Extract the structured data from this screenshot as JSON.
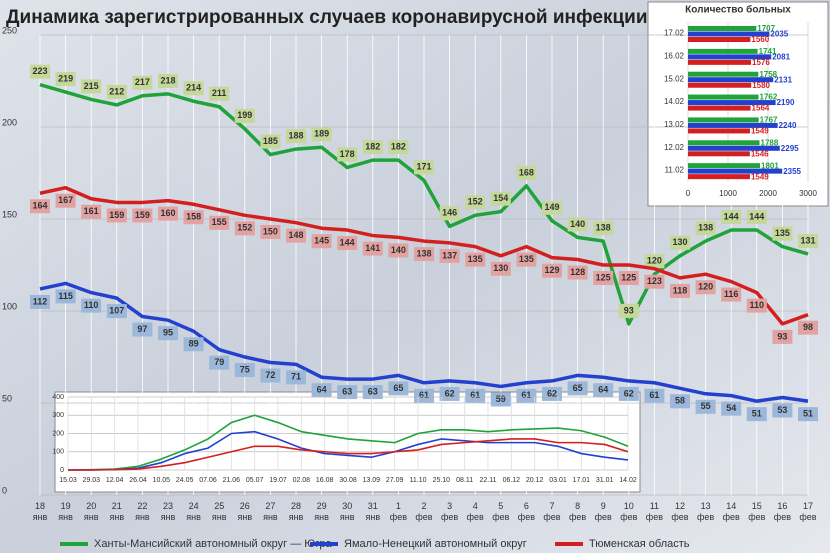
{
  "chart_data": [
    {
      "type": "line",
      "title": "Динамика зарегистрированных случаев коронавирусной инфекции",
      "categories": [
        "18 янв",
        "19 янв",
        "20 янв",
        "21 янв",
        "22 янв",
        "23 янв",
        "24 янв",
        "25 янв",
        "26 янв",
        "27 янв",
        "28 янв",
        "29 янв",
        "30 янв",
        "31 янв",
        "1 фев",
        "2 фев",
        "3 фев",
        "4 фев",
        "5 фев",
        "6 фев",
        "7 фев",
        "8 фев",
        "9 фев",
        "10 фев",
        "11 фев",
        "12 фев",
        "13 фев",
        "14 фев",
        "15 фев",
        "16 фев",
        "17 фев"
      ],
      "series": [
        {
          "name": "Ханты-Мансийский автономный округ — Югра",
          "color": "#1fa33a",
          "label_color": "#c4d89a",
          "values": [
            223,
            219,
            215,
            212,
            217,
            218,
            214,
            211,
            199,
            185,
            188,
            189,
            178,
            182,
            182,
            171,
            146,
            152,
            154,
            168,
            149,
            140,
            138,
            93,
            120,
            130,
            138,
            144,
            144,
            135,
            131
          ]
        },
        {
          "name": "Ямало-Ненецкий автономный округ",
          "color": "#2341cf",
          "label_color": "#9bb7da",
          "values": [
            112,
            115,
            110,
            107,
            97,
            95,
            89,
            79,
            75,
            72,
            71,
            64,
            63,
            63,
            65,
            61,
            62,
            61,
            59,
            61,
            62,
            65,
            64,
            62,
            61,
            58,
            55,
            54,
            51,
            53,
            51
          ]
        },
        {
          "name": "Тюменская область",
          "color": "#d41f1f",
          "label_color": "#e3a2a2",
          "values": [
            164,
            167,
            161,
            159,
            159,
            160,
            158,
            155,
            152,
            150,
            148,
            145,
            144,
            141,
            140,
            138,
            137,
            135,
            130,
            135,
            129,
            128,
            125,
            125,
            123,
            118,
            120,
            116,
            110,
            93,
            98
          ]
        }
      ],
      "ylim": [
        0,
        250
      ],
      "yticks": [
        0,
        50,
        100,
        150,
        200,
        250
      ],
      "grid": true
    },
    {
      "type": "line",
      "categories": [
        "15.03",
        "29.03",
        "12.04",
        "26.04",
        "10.05",
        "24.05",
        "07.06",
        "21.06",
        "05.07",
        "19.07",
        "02.08",
        "16.08",
        "30.08",
        "13.09",
        "27.09",
        "11.10",
        "25.10",
        "08.11",
        "22.11",
        "06.12",
        "20.12",
        "03.01",
        "17.01",
        "31.01",
        "14.02"
      ],
      "series": [
        {
          "color": "#1fa33a",
          "values": [
            0,
            2,
            5,
            20,
            60,
            110,
            170,
            260,
            300,
            260,
            210,
            190,
            170,
            160,
            150,
            200,
            220,
            220,
            210,
            220,
            225,
            230,
            215,
            180,
            130
          ]
        },
        {
          "color": "#2341cf",
          "values": [
            0,
            0,
            2,
            10,
            40,
            90,
            120,
            200,
            210,
            170,
            120,
            90,
            80,
            70,
            100,
            140,
            170,
            160,
            150,
            150,
            150,
            130,
            90,
            70,
            55
          ]
        },
        {
          "color": "#d41f1f",
          "values": [
            0,
            0,
            2,
            5,
            20,
            40,
            70,
            100,
            130,
            130,
            110,
            100,
            90,
            90,
            100,
            110,
            140,
            150,
            160,
            170,
            170,
            150,
            150,
            140,
            100
          ]
        }
      ],
      "ylim": [
        0,
        400
      ],
      "yticks": [
        0,
        100,
        200,
        300,
        400
      ],
      "grid": true
    },
    {
      "type": "hbar",
      "title": "Количество больных",
      "categories": [
        "17.02",
        "16.02",
        "15.02",
        "14.02",
        "13.02",
        "12.02",
        "11.02"
      ],
      "series": [
        {
          "color": "#1fa33a",
          "values": [
            1707,
            1741,
            1758,
            1762,
            1767,
            1788,
            1801
          ]
        },
        {
          "color": "#2341cf",
          "values": [
            2035,
            2081,
            2131,
            2190,
            2240,
            2295,
            2355
          ]
        },
        {
          "color": "#d41f1f",
          "values": [
            1560,
            1576,
            1580,
            1564,
            1549,
            1546,
            1549
          ]
        }
      ],
      "xlim": [
        0,
        3000
      ],
      "xticks": [
        0,
        1000,
        2000,
        3000
      ],
      "grid": true
    }
  ]
}
